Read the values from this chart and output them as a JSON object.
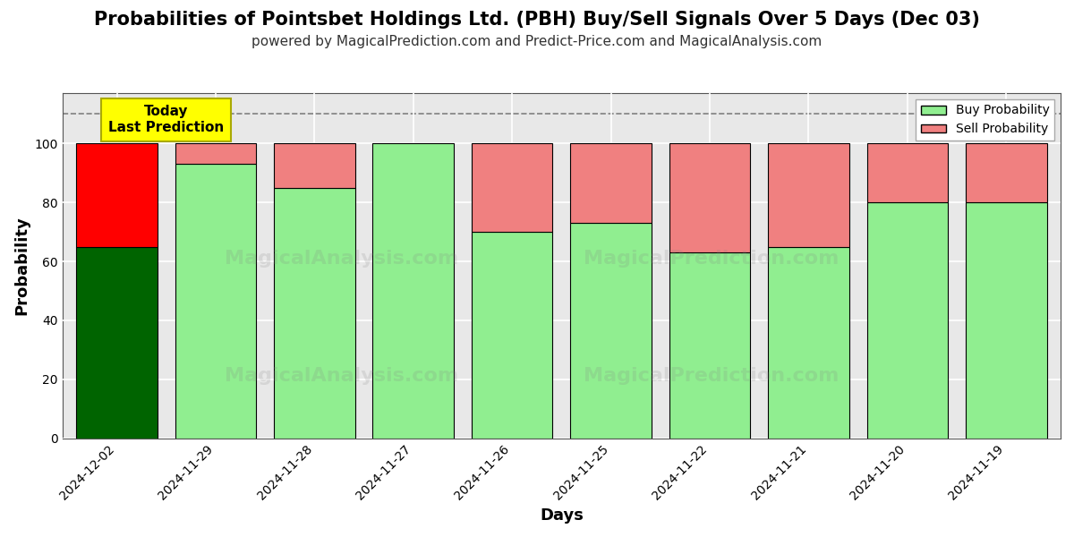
{
  "title": "Probabilities of Pointsbet Holdings Ltd. (PBH) Buy/Sell Signals Over 5 Days (Dec 03)",
  "subtitle": "powered by MagicalPrediction.com and Predict-Price.com and MagicalAnalysis.com",
  "xlabel": "Days",
  "ylabel": "Probability",
  "dates": [
    "2024-12-02",
    "2024-11-29",
    "2024-11-28",
    "2024-11-27",
    "2024-11-26",
    "2024-11-25",
    "2024-11-22",
    "2024-11-21",
    "2024-11-20",
    "2024-11-19"
  ],
  "buy_values": [
    65,
    93,
    85,
    100,
    70,
    73,
    63,
    65,
    80,
    80
  ],
  "sell_values": [
    35,
    7,
    15,
    0,
    30,
    27,
    37,
    35,
    20,
    20
  ],
  "today_bar_buy_color": "#006400",
  "today_bar_sell_color": "#FF0000",
  "other_bar_buy_color": "#90EE90",
  "other_bar_sell_color": "#F08080",
  "bar_edge_color": "#000000",
  "today_label": "Today\nLast Prediction",
  "today_label_bg": "#FFFF00",
  "legend_buy_color": "#90EE90",
  "legend_sell_color": "#F08080",
  "legend_buy_label": "Buy Probability",
  "legend_sell_label": "Sell Probability",
  "dashed_line_y": 110,
  "ylim": [
    0,
    117
  ],
  "yticks": [
    0,
    20,
    40,
    60,
    80,
    100
  ],
  "grid_color": "#FFFFFF",
  "bg_color": "#E8E8E8",
  "title_fontsize": 15,
  "subtitle_fontsize": 11
}
